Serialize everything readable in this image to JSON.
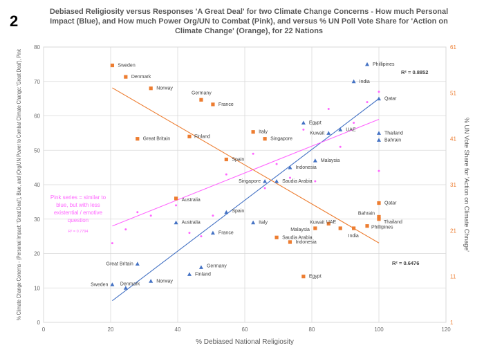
{
  "slide_number": "2",
  "chart_data": {
    "type": "scatter",
    "title": "Debiased Religiosity versus Responses 'A Great Deal' for two Climate Change Concerns - How much Personal Impact (Blue), and How much Power Org/UN to Combat (Pink), and versus % UN Poll Vote Share for 'Action on Climate Change' (Orange), for 22 Nations",
    "xlabel": "% Debiased National Religiosity",
    "ylabel": "% Climate Change Conerns - (Personal Impact: 'Great Deal'), Blue, and (Org/UN Power to Combat Climate Change: 'Great Deal'), Pink",
    "y2label": "% UN Vote Share for 'Action on Climate Chnage'",
    "xlim": [
      0,
      120
    ],
    "ylim": [
      0,
      80
    ],
    "y2lim": [
      1,
      61
    ],
    "xticks": [
      0,
      20,
      40,
      60,
      80,
      100,
      120
    ],
    "yticks": [
      0,
      10,
      20,
      30,
      40,
      50,
      60,
      70,
      80
    ],
    "y2ticks": [
      1,
      11,
      21,
      31,
      41,
      51,
      61
    ],
    "colors": {
      "blue": "#4472c4",
      "pink": "#ff66ff",
      "orange": "#ed7d31",
      "axis_left": "#6a6a6a",
      "axis_right": "#ed7d31"
    },
    "series": [
      {
        "name": "Personal Impact (Blue)",
        "axis": "left",
        "marker": "triangle",
        "color": "#4472c4",
        "r2": "R² = 0.8852",
        "trend": [
          [
            20.5,
            6.3
          ],
          [
            100,
            65
          ]
        ],
        "points": [
          {
            "label": "Phillipines",
            "x": 96.5,
            "y": 75
          },
          {
            "label": "India",
            "x": 92.5,
            "y": 70
          },
          {
            "label": "Qatar",
            "x": 100,
            "y": 65
          },
          {
            "label": "Egypt",
            "x": 77.5,
            "y": 58
          },
          {
            "label": "Kuwait",
            "x": 85,
            "y": 55
          },
          {
            "label": "UAE",
            "x": 88.5,
            "y": 56
          },
          {
            "label": "Thailand",
            "x": 100,
            "y": 55
          },
          {
            "label": "Bahrain",
            "x": 100,
            "y": 53
          },
          {
            "label": "Malaysia",
            "x": 81,
            "y": 47
          },
          {
            "label": "Indonesia",
            "x": 73.5,
            "y": 45
          },
          {
            "label": "Singapore",
            "x": 66,
            "y": 41
          },
          {
            "label": "Saudia Arabia",
            "x": 69.5,
            "y": 41
          },
          {
            "label": "Spain",
            "x": 54.5,
            "y": 32
          },
          {
            "label": "Australia",
            "x": 39.5,
            "y": 29
          },
          {
            "label": "Italy",
            "x": 62.5,
            "y": 29
          },
          {
            "label": "France",
            "x": 50.5,
            "y": 26
          },
          {
            "label": "Great Britain",
            "x": 28,
            "y": 17
          },
          {
            "label": "Germany",
            "x": 47,
            "y": 16
          },
          {
            "label": "Finland",
            "x": 43.5,
            "y": 14
          },
          {
            "label": "Norway",
            "x": 32,
            "y": 12
          },
          {
            "label": "Denmark",
            "x": 24.5,
            "y": 10
          },
          {
            "label": "Sweden",
            "x": 20.5,
            "y": 11
          }
        ]
      },
      {
        "name": "Power Org/UN to Combat (Pink)",
        "axis": "left",
        "marker": "dot",
        "color": "#ff66ff",
        "note": "Pink series = similar to blue, but with less existential / emotive question",
        "r2": "R² = 0.7794",
        "trend": [
          [
            20.5,
            28
          ],
          [
            100,
            59
          ]
        ],
        "points": [
          {
            "x": 100,
            "y": 67
          },
          {
            "x": 96.5,
            "y": 64
          },
          {
            "x": 85,
            "y": 62
          },
          {
            "x": 92.5,
            "y": 58
          },
          {
            "x": 77.5,
            "y": 56
          },
          {
            "x": 88.5,
            "y": 51
          },
          {
            "x": 62.5,
            "y": 49
          },
          {
            "x": 69.5,
            "y": 46
          },
          {
            "x": 100,
            "y": 44
          },
          {
            "x": 54.5,
            "y": 43
          },
          {
            "x": 73.5,
            "y": 42
          },
          {
            "x": 81,
            "y": 41
          },
          {
            "x": 66,
            "y": 39
          },
          {
            "x": 50.5,
            "y": 31
          },
          {
            "x": 28,
            "y": 32
          },
          {
            "x": 32,
            "y": 31
          },
          {
            "x": 39.5,
            "y": 34
          },
          {
            "x": 24.5,
            "y": 27
          },
          {
            "x": 43.5,
            "y": 26
          },
          {
            "x": 47,
            "y": 25
          },
          {
            "x": 20.5,
            "y": 23
          }
        ]
      },
      {
        "name": "UN Vote Share 'Action on Climate Change' (Orange)",
        "axis": "right",
        "marker": "square",
        "color": "#ed7d31",
        "r2": "R² = 0.6476",
        "trend": [
          [
            20.5,
            52.1
          ],
          [
            100,
            18.3
          ]
        ],
        "points": [
          {
            "label": "Sweden",
            "x": 20.5,
            "y2": 57
          },
          {
            "label": "Denmark",
            "x": 24.5,
            "y2": 54.5
          },
          {
            "label": "Norway",
            "x": 32,
            "y2": 52
          },
          {
            "label": "Germany",
            "x": 47,
            "y2": 49.5
          },
          {
            "label": "France",
            "x": 50.5,
            "y2": 48.5
          },
          {
            "label": "Italy",
            "x": 62.5,
            "y2": 42.5
          },
          {
            "label": "Singapore",
            "x": 66,
            "y2": 41
          },
          {
            "label": "Finland",
            "x": 43.5,
            "y2": 41.5
          },
          {
            "label": "Great Britain",
            "x": 28,
            "y2": 41
          },
          {
            "label": "Spain",
            "x": 54.5,
            "y2": 36.5
          },
          {
            "label": "Australia",
            "x": 39.5,
            "y2": 28
          },
          {
            "label": "Qatar",
            "x": 100,
            "y2": 27
          },
          {
            "label": "Bahrain",
            "x": 100,
            "y2": 24
          },
          {
            "label": "Thailand",
            "x": 100,
            "y2": 23.5
          },
          {
            "label": "Kuwait",
            "x": 85,
            "y2": 22.5
          },
          {
            "label": "UAE",
            "x": 88.5,
            "y2": 21.5
          },
          {
            "label": "Malaysia",
            "x": 81,
            "y2": 21.5
          },
          {
            "label": "Phillipines",
            "x": 96.5,
            "y2": 22
          },
          {
            "label": "India",
            "x": 92.5,
            "y2": 21.5
          },
          {
            "label": "Saudia Arabia",
            "x": 69.5,
            "y2": 19.5
          },
          {
            "label": "Indonesia",
            "x": 73.5,
            "y2": 18.5
          },
          {
            "label": "Egypt",
            "x": 77.5,
            "y2": 11
          }
        ]
      }
    ]
  }
}
